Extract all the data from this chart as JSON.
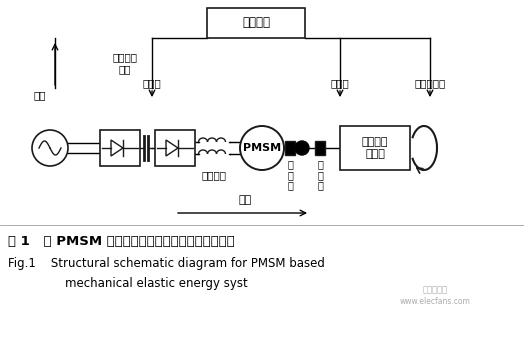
{
  "bg_color": "#ffffff",
  "line_color": "#1a1a1a",
  "title_cn": "图 1   以 PMSM 为执行机构的机械弹性储能系统结构",
  "title_en_1": "Fig.1    Structural schematic diagram for PMSM based",
  "title_en_2": "mechanical elastic energy syst",
  "label_dianwang": "电网",
  "label_nibianqi": "逆变器",
  "label_yongci": "永磁同步\n电机",
  "label_bianmaqqi": "编码器",
  "label_dianci": "电磁制动器",
  "label_kongzhi": "控制系统",
  "label_diankang": "电抗滤波",
  "label_chuneng": "储能",
  "label_pmsm": "PMSM",
  "label_lianzhouqi1": "联\n轴\n器",
  "label_lianzhouqi2": "联\n轴\n器",
  "label_jixie": "机械弹性\n储能箱",
  "watermark1": "电子发烧友",
  "watermark2": "www.elecfans.com"
}
